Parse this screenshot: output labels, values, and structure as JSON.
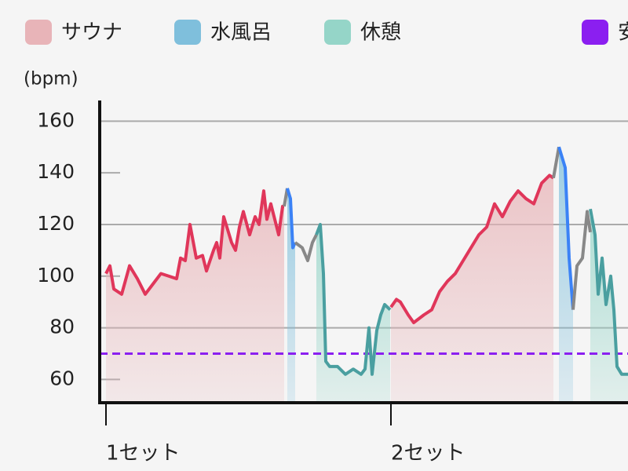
{
  "chart_data": {
    "type": "line",
    "y_label": "(bpm)",
    "ylim": [
      51,
      168
    ],
    "yticks": [
      60,
      80,
      100,
      120,
      140,
      160
    ],
    "grid": true,
    "xlim": [
      0,
      665
    ],
    "xticks": [
      {
        "value": 0,
        "label": "1セット"
      },
      {
        "value": 363,
        "label": "2セット"
      }
    ],
    "series": [
      {
        "name": "サウナ",
        "color": "#e8b4b8",
        "line_color": "#e0365a"
      },
      {
        "name": "水風呂",
        "color": "#7fbfdc",
        "line_color": "#3b82f6"
      },
      {
        "name": "休憩",
        "color": "#95d5c8",
        "line_color": "#4a9fa0"
      }
    ],
    "reference": {
      "name": "安",
      "color": "#8b1ff0",
      "value": 70
    },
    "gap_color": "#888888",
    "segments": [
      {
        "series": 0,
        "x": [
          0,
          5,
          10,
          20,
          30,
          40,
          50,
          60,
          70,
          80,
          90,
          95,
          101,
          107,
          115,
          123,
          128,
          137,
          141,
          145,
          150,
          160,
          165,
          170,
          175,
          183,
          190,
          195,
          201,
          205,
          210,
          220,
          225,
          227
        ],
        "values": [
          101,
          104,
          95,
          93,
          104,
          99,
          93,
          97,
          101,
          100,
          99,
          107,
          106,
          120,
          107,
          108,
          102,
          110,
          113,
          107,
          123,
          113,
          110,
          119,
          125,
          116,
          123,
          120,
          133,
          122,
          128,
          116,
          127,
          127
        ]
      },
      {
        "series": null,
        "x": [
          227,
          231
        ],
        "values": [
          127,
          134
        ]
      },
      {
        "series": 1,
        "x": [
          231,
          235,
          238,
          241
        ],
        "values": [
          134,
          130,
          111,
          113
        ]
      },
      {
        "series": null,
        "x": [
          241,
          250,
          257,
          263,
          268
        ],
        "values": [
          113,
          111,
          106,
          113,
          116
        ]
      },
      {
        "series": 2,
        "x": [
          268,
          273,
          277,
          280,
          285,
          295,
          305,
          315,
          325,
          330,
          335,
          339,
          345,
          350,
          355,
          362
        ],
        "values": [
          116,
          120,
          101,
          67,
          65,
          65,
          62,
          64,
          62,
          64,
          80,
          62,
          79,
          85,
          89,
          87
        ]
      },
      {
        "series": 0,
        "x": [
          363,
          370,
          375,
          385,
          392,
          405,
          415,
          425,
          435,
          445,
          455,
          465,
          475,
          485,
          495,
          505,
          515,
          525,
          535,
          545,
          555,
          565,
          570
        ],
        "values": [
          88,
          91,
          90,
          85,
          82,
          85,
          87,
          94,
          98,
          101,
          106,
          111,
          116,
          119,
          128,
          123,
          129,
          133,
          130,
          128,
          136,
          139,
          138
        ]
      },
      {
        "series": null,
        "x": [
          570,
          577
        ],
        "values": [
          138,
          150
        ]
      },
      {
        "series": 1,
        "x": [
          577,
          585,
          590,
          595
        ],
        "values": [
          150,
          142,
          107,
          87
        ]
      },
      {
        "series": null,
        "x": [
          595,
          600,
          607,
          613,
          617
        ],
        "values": [
          87,
          104,
          107,
          125,
          117
        ]
      },
      {
        "series": 2,
        "x": [
          617,
          623,
          627,
          632,
          637,
          643,
          647,
          651,
          657,
          665
        ],
        "values": [
          126,
          116,
          93,
          107,
          89,
          100,
          87,
          65,
          62,
          62
        ]
      }
    ]
  }
}
